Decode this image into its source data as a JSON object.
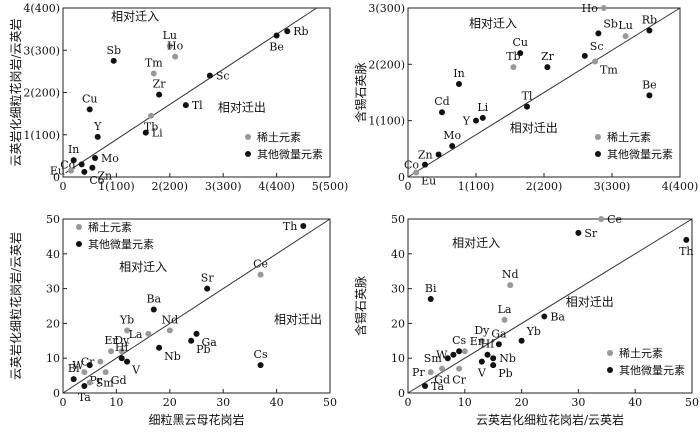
{
  "colors": {
    "ree": "#999999",
    "other": "#111111",
    "axis": "#222222",
    "line": "#333333"
  },
  "chart_data": [
    {
      "type": "scatter",
      "id": "a",
      "ylabel": "云英岩化细粒花岗岩/云英岩",
      "xlabel": "",
      "xlim": [
        0,
        5
      ],
      "ylim": [
        0,
        4
      ],
      "xticks": [
        {
          "v": 0,
          "t": "0"
        },
        {
          "v": 1,
          "t": "1(100)"
        },
        {
          "v": 2,
          "t": "2(200)"
        },
        {
          "v": 3,
          "t": "3(300)"
        },
        {
          "v": 4,
          "t": "4(400)"
        },
        {
          "v": 5,
          "t": "5(500)"
        }
      ],
      "yticks": [
        {
          "v": 0,
          "t": "0"
        },
        {
          "v": 1,
          "t": "1(100)"
        },
        {
          "v": 2,
          "t": "2(200)"
        },
        {
          "v": 3,
          "t": "3(300)"
        },
        {
          "v": 4,
          "t": "4(400)"
        }
      ],
      "line": [
        [
          0.05,
          0.1
        ],
        [
          4.75,
          4.0
        ]
      ],
      "annotations": [
        {
          "text": "相对迁入",
          "pos": [
            1.35,
            3.7
          ]
        },
        {
          "text": "相对迁出",
          "pos": [
            3.35,
            1.55
          ]
        }
      ],
      "legend": {
        "pos": "bottom-right",
        "items": [
          {
            "label": "稀土元素",
            "cls": "ree"
          },
          {
            "label": "其他微量元素",
            "cls": "other"
          }
        ]
      },
      "points": [
        {
          "label": "Rb",
          "x": 4.2,
          "y": 3.45,
          "cls": "other",
          "lp": "r"
        },
        {
          "label": "Be",
          "x": 4.0,
          "y": 3.35,
          "cls": "other",
          "lp": "b"
        },
        {
          "label": "Lu",
          "x": 2.0,
          "y": 3.1,
          "cls": "ree",
          "lp": "t"
        },
        {
          "label": "Ho",
          "x": 2.1,
          "y": 2.85,
          "cls": "ree",
          "lp": "t"
        },
        {
          "label": "Sb",
          "x": 0.95,
          "y": 2.75,
          "cls": "other",
          "lp": "t"
        },
        {
          "label": "Tm",
          "x": 1.7,
          "y": 2.45,
          "cls": "ree",
          "lp": "t"
        },
        {
          "label": "Sc",
          "x": 2.75,
          "y": 2.4,
          "cls": "other",
          "lp": "r"
        },
        {
          "label": "Zr",
          "x": 1.8,
          "y": 1.95,
          "cls": "other",
          "lp": "t"
        },
        {
          "label": "Cu",
          "x": 0.5,
          "y": 1.6,
          "cls": "other",
          "lp": "t"
        },
        {
          "label": "Tb",
          "x": 1.65,
          "y": 1.45,
          "cls": "ree",
          "lp": "b"
        },
        {
          "label": "Tl",
          "x": 2.3,
          "y": 1.7,
          "cls": "other",
          "lp": "r"
        },
        {
          "label": "Li",
          "x": 1.55,
          "y": 1.05,
          "cls": "other",
          "lp": "r"
        },
        {
          "label": "Y",
          "x": 0.65,
          "y": 0.95,
          "cls": "other",
          "lp": "t"
        },
        {
          "label": "Mo",
          "x": 0.6,
          "y": 0.45,
          "cls": "other",
          "lp": "r"
        },
        {
          "label": "In",
          "x": 0.2,
          "y": 0.4,
          "cls": "other",
          "lp": "t"
        },
        {
          "label": "Cd",
          "x": 0.35,
          "y": 0.3,
          "cls": "other",
          "lp": "l"
        },
        {
          "label": "Zn",
          "x": 0.55,
          "y": 0.22,
          "cls": "other",
          "lp": "br"
        },
        {
          "label": "Co",
          "x": 0.4,
          "y": 0.12,
          "cls": "other",
          "lp": "br"
        },
        {
          "label": "Eu",
          "x": 0.15,
          "y": 0.15,
          "cls": "ree",
          "lp": "l"
        }
      ]
    },
    {
      "type": "scatter",
      "id": "b",
      "ylabel": "含锡石英脉",
      "xlabel": "",
      "xlim": [
        0,
        4
      ],
      "ylim": [
        0,
        3
      ],
      "xticks": [
        {
          "v": 0,
          "t": "0"
        },
        {
          "v": 1,
          "t": "1(100)"
        },
        {
          "v": 2,
          "t": "2(200)"
        },
        {
          "v": 3,
          "t": "3(300)"
        },
        {
          "v": 4,
          "t": "4(400)"
        }
      ],
      "yticks": [
        {
          "v": 0,
          "t": "0"
        },
        {
          "v": 1,
          "t": "1(100)"
        },
        {
          "v": 2,
          "t": "2(200)"
        },
        {
          "v": 3,
          "t": "3(300)"
        }
      ],
      "line": [
        [
          0,
          0
        ],
        [
          4,
          3
        ]
      ],
      "annotations": [
        {
          "text": "相对迁入",
          "pos": [
            1.25,
            2.65
          ]
        },
        {
          "text": "相对迁出",
          "pos": [
            1.85,
            0.8
          ]
        }
      ],
      "legend": {
        "pos": "bottom-right",
        "items": [
          {
            "label": "稀土元素",
            "cls": "ree"
          },
          {
            "label": "其他微量元素",
            "cls": "other"
          }
        ]
      },
      "points": [
        {
          "label": "Ho",
          "x": 2.88,
          "y": 3.0,
          "cls": "ree",
          "lp": "l"
        },
        {
          "label": "Sb",
          "x": 2.8,
          "y": 2.55,
          "cls": "other",
          "lp": "tr"
        },
        {
          "label": "Lu",
          "x": 3.2,
          "y": 2.5,
          "cls": "ree",
          "lp": "t"
        },
        {
          "label": "Rb",
          "x": 3.55,
          "y": 2.6,
          "cls": "other",
          "lp": "t"
        },
        {
          "label": "Tb",
          "x": 1.55,
          "y": 1.95,
          "cls": "ree",
          "lp": "t"
        },
        {
          "label": "Cu",
          "x": 1.65,
          "y": 2.2,
          "cls": "other",
          "lp": "t"
        },
        {
          "label": "Zr",
          "x": 2.05,
          "y": 1.95,
          "cls": "other",
          "lp": "t"
        },
        {
          "label": "Sc",
          "x": 2.6,
          "y": 2.15,
          "cls": "other",
          "lp": "tr"
        },
        {
          "label": "Tm",
          "x": 2.75,
          "y": 2.05,
          "cls": "ree",
          "lp": "br"
        },
        {
          "label": "In",
          "x": 0.75,
          "y": 1.65,
          "cls": "other",
          "lp": "t"
        },
        {
          "label": "Tl",
          "x": 1.75,
          "y": 1.25,
          "cls": "other",
          "lp": "t"
        },
        {
          "label": "Be",
          "x": 3.55,
          "y": 1.45,
          "cls": "other",
          "lp": "t"
        },
        {
          "label": "Cd",
          "x": 0.5,
          "y": 1.15,
          "cls": "other",
          "lp": "t"
        },
        {
          "label": "Y",
          "x": 1.0,
          "y": 1.0,
          "cls": "other",
          "lp": "l"
        },
        {
          "label": "Li",
          "x": 1.1,
          "y": 1.05,
          "cls": "other",
          "lp": "t"
        },
        {
          "label": "Mo",
          "x": 0.65,
          "y": 0.55,
          "cls": "other",
          "lp": "t"
        },
        {
          "label": "Zn",
          "x": 0.45,
          "y": 0.4,
          "cls": "other",
          "lp": "l"
        },
        {
          "label": "Co",
          "x": 0.25,
          "y": 0.22,
          "cls": "other",
          "lp": "l"
        },
        {
          "label": "Eu",
          "x": 0.12,
          "y": 0.08,
          "cls": "ree",
          "lp": "br"
        }
      ]
    },
    {
      "type": "scatter",
      "id": "c",
      "ylabel": "云英岩化细粒花岗岩/云英岩",
      "xlabel": "细粒黑云母花岗岩",
      "xlim": [
        0,
        50
      ],
      "ylim": [
        0,
        50
      ],
      "xticks": [
        {
          "v": 0,
          "t": "0"
        },
        {
          "v": 10,
          "t": "10"
        },
        {
          "v": 20,
          "t": "20"
        },
        {
          "v": 30,
          "t": "30"
        },
        {
          "v": 40,
          "t": "40"
        },
        {
          "v": 50,
          "t": "50"
        }
      ],
      "yticks": [
        {
          "v": 0,
          "t": "0"
        },
        {
          "v": 10,
          "t": "10"
        },
        {
          "v": 20,
          "t": "20"
        },
        {
          "v": 30,
          "t": "30"
        },
        {
          "v": 40,
          "t": "40"
        },
        {
          "v": 50,
          "t": "50"
        }
      ],
      "line": [
        [
          0,
          0
        ],
        [
          50,
          50
        ]
      ],
      "annotations": [
        {
          "text": "相对迁入",
          "pos": [
            15,
            35
          ]
        },
        {
          "text": "相对迁出",
          "pos": [
            44,
            20
          ]
        }
      ],
      "legend": {
        "pos": "top-left",
        "items": [
          {
            "label": "稀土元素",
            "cls": "ree"
          },
          {
            "label": "其他微量元素",
            "cls": "other"
          }
        ]
      },
      "points": [
        {
          "label": "Th",
          "x": 45,
          "y": 48,
          "cls": "other",
          "lp": "l"
        },
        {
          "label": "Ce",
          "x": 37,
          "y": 34,
          "cls": "ree",
          "lp": "t"
        },
        {
          "label": "Sr",
          "x": 27,
          "y": 30,
          "cls": "other",
          "lp": "t"
        },
        {
          "label": "Ba",
          "x": 17,
          "y": 24,
          "cls": "other",
          "lp": "t"
        },
        {
          "label": "Yb",
          "x": 12,
          "y": 18,
          "cls": "ree",
          "lp": "t"
        },
        {
          "label": "La",
          "x": 16,
          "y": 17,
          "cls": "ree",
          "lp": "l"
        },
        {
          "label": "Nd",
          "x": 20,
          "y": 18,
          "cls": "ree",
          "lp": "t"
        },
        {
          "label": "Ga",
          "x": 25,
          "y": 17,
          "cls": "other",
          "lp": "br"
        },
        {
          "label": "Pb",
          "x": 24,
          "y": 15,
          "cls": "other",
          "lp": "br"
        },
        {
          "label": "Nb",
          "x": 18,
          "y": 13,
          "cls": "other",
          "lp": "br"
        },
        {
          "label": "Er",
          "x": 9,
          "y": 12,
          "cls": "ree",
          "lp": "t"
        },
        {
          "label": "Dy",
          "x": 11,
          "y": 12,
          "cls": "ree",
          "lp": "t"
        },
        {
          "label": "Hf",
          "x": 11,
          "y": 10,
          "cls": "other",
          "lp": "t"
        },
        {
          "label": "V",
          "x": 12,
          "y": 9,
          "cls": "other",
          "lp": "br"
        },
        {
          "label": "Cr",
          "x": 7,
          "y": 9,
          "cls": "ree",
          "lp": "l"
        },
        {
          "label": "W",
          "x": 5,
          "y": 8,
          "cls": "other",
          "lp": "l"
        },
        {
          "label": "Pr",
          "x": 4,
          "y": 6,
          "cls": "ree",
          "lp": "br"
        },
        {
          "label": "Gd",
          "x": 8,
          "y": 6,
          "cls": "ree",
          "lp": "br"
        },
        {
          "label": "Cs",
          "x": 37,
          "y": 8,
          "cls": "other",
          "lp": "t"
        },
        {
          "label": "Bi",
          "x": 2,
          "y": 4,
          "cls": "other",
          "lp": "t"
        },
        {
          "label": "Sm",
          "x": 5,
          "y": 3,
          "cls": "ree",
          "lp": "r"
        },
        {
          "label": "Ta",
          "x": 4,
          "y": 2,
          "cls": "other",
          "lp": "b"
        }
      ]
    },
    {
      "type": "scatter",
      "id": "d",
      "ylabel": "含锡石英脉",
      "xlabel": "云英岩化细粒花岗岩/云英岩",
      "xlim": [
        0,
        50
      ],
      "ylim": [
        0,
        50
      ],
      "xticks": [
        {
          "v": 0,
          "t": "0"
        },
        {
          "v": 10,
          "t": "10"
        },
        {
          "v": 20,
          "t": "20"
        },
        {
          "v": 30,
          "t": "30"
        },
        {
          "v": 40,
          "t": "40"
        },
        {
          "v": 50,
          "t": "50"
        }
      ],
      "yticks": [
        {
          "v": 0,
          "t": "0"
        },
        {
          "v": 10,
          "t": "10"
        },
        {
          "v": 20,
          "t": "20"
        },
        {
          "v": 30,
          "t": "30"
        },
        {
          "v": 40,
          "t": "40"
        },
        {
          "v": 50,
          "t": "50"
        }
      ],
      "line": [
        [
          0,
          0
        ],
        [
          50,
          50
        ]
      ],
      "annotations": [
        {
          "text": "相对迁入",
          "pos": [
            12,
            42
          ]
        },
        {
          "text": "相对迁出",
          "pos": [
            32,
            25
          ]
        }
      ],
      "legend": {
        "pos": "bottom-right",
        "items": [
          {
            "label": "稀土元素",
            "cls": "ree"
          },
          {
            "label": "其他微量元素",
            "cls": "other"
          }
        ]
      },
      "points": [
        {
          "label": "Ce",
          "x": 34,
          "y": 50,
          "cls": "ree",
          "lp": "r"
        },
        {
          "label": "Sr",
          "x": 30,
          "y": 46,
          "cls": "other",
          "lp": "r"
        },
        {
          "label": "Th",
          "x": 49,
          "y": 44,
          "cls": "other",
          "lp": "b"
        },
        {
          "label": "Nd",
          "x": 18,
          "y": 31,
          "cls": "ree",
          "lp": "t"
        },
        {
          "label": "Bi",
          "x": 4,
          "y": 27,
          "cls": "other",
          "lp": "t"
        },
        {
          "label": "La",
          "x": 17,
          "y": 21,
          "cls": "ree",
          "lp": "t"
        },
        {
          "label": "Ba",
          "x": 24,
          "y": 22,
          "cls": "other",
          "lp": "r"
        },
        {
          "label": "Yb",
          "x": 20,
          "y": 15,
          "cls": "other",
          "lp": "tr"
        },
        {
          "label": "Dy",
          "x": 13,
          "y": 15,
          "cls": "ree",
          "lp": "t"
        },
        {
          "label": "Cs",
          "x": 9,
          "y": 12,
          "cls": "other",
          "lp": "t"
        },
        {
          "label": "Er",
          "x": 10,
          "y": 12,
          "cls": "ree",
          "lp": "tr"
        },
        {
          "label": "Ga",
          "x": 16,
          "y": 14,
          "cls": "other",
          "lp": "t"
        },
        {
          "label": "Hf",
          "x": 14,
          "y": 11,
          "cls": "other",
          "lp": "t"
        },
        {
          "label": "Nb",
          "x": 15,
          "y": 10,
          "cls": "other",
          "lp": "r"
        },
        {
          "label": "V",
          "x": 13,
          "y": 9,
          "cls": "other",
          "lp": "b"
        },
        {
          "label": "Pb",
          "x": 15,
          "y": 8,
          "cls": "other",
          "lp": "br"
        },
        {
          "label": "Sm",
          "x": 7,
          "y": 10,
          "cls": "other",
          "lp": "l"
        },
        {
          "label": "W",
          "x": 8,
          "y": 11,
          "cls": "other",
          "lp": "l"
        },
        {
          "label": "Pr",
          "x": 4,
          "y": 6,
          "cls": "ree",
          "lp": "l"
        },
        {
          "label": "Gd",
          "x": 6,
          "y": 7,
          "cls": "ree",
          "lp": "b"
        },
        {
          "label": "Cr",
          "x": 9,
          "y": 7,
          "cls": "ree",
          "lp": "b"
        },
        {
          "label": "Ta",
          "x": 3,
          "y": 2,
          "cls": "other",
          "lp": "r"
        }
      ]
    }
  ]
}
